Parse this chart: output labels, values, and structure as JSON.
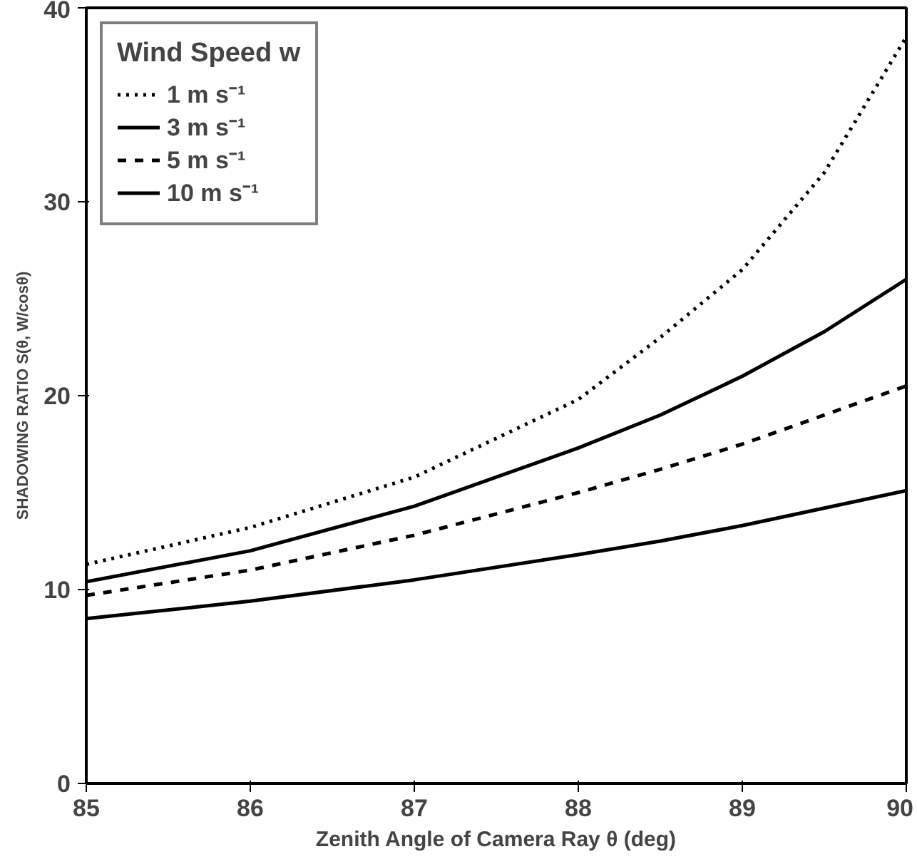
{
  "chart_data": {
    "type": "line",
    "xlabel": "Zenith Angle of Camera Ray θ (deg)",
    "ylabel": "SHADOWING RATIO S(θ, W/cosθ)",
    "legend_title": "Wind Speed w",
    "legend": "top left",
    "grid": false,
    "x": [
      85,
      86,
      87,
      88,
      88.5,
      89,
      89.5,
      90
    ],
    "series": [
      {
        "name": "1 m s⁻¹",
        "color": "#000000",
        "line_style": "dotted",
        "values": [
          11.3,
          13.2,
          15.8,
          19.8,
          23.0,
          26.5,
          31.5,
          38.5
        ]
      },
      {
        "name": "3 m s⁻¹",
        "color": "#000000",
        "line_style": "solid",
        "values": [
          10.4,
          12.0,
          14.3,
          17.3,
          19.0,
          21.0,
          23.3,
          26.0
        ]
      },
      {
        "name": "5 m s⁻¹",
        "color": "#000000",
        "line_style": "dashed",
        "values": [
          9.7,
          11.0,
          12.8,
          15.0,
          16.2,
          17.5,
          19.0,
          20.5
        ]
      },
      {
        "name": "10 m s⁻¹",
        "color": "#000000",
        "line_style": "solid",
        "values": [
          8.5,
          9.4,
          10.5,
          11.8,
          12.5,
          13.3,
          14.2,
          15.1
        ]
      }
    ],
    "xlim": [
      85,
      90
    ],
    "xticks": [
      85,
      86,
      87,
      88,
      89,
      90
    ],
    "ylim": [
      0,
      40
    ],
    "yticks": [
      0,
      10,
      20,
      30,
      40
    ]
  }
}
